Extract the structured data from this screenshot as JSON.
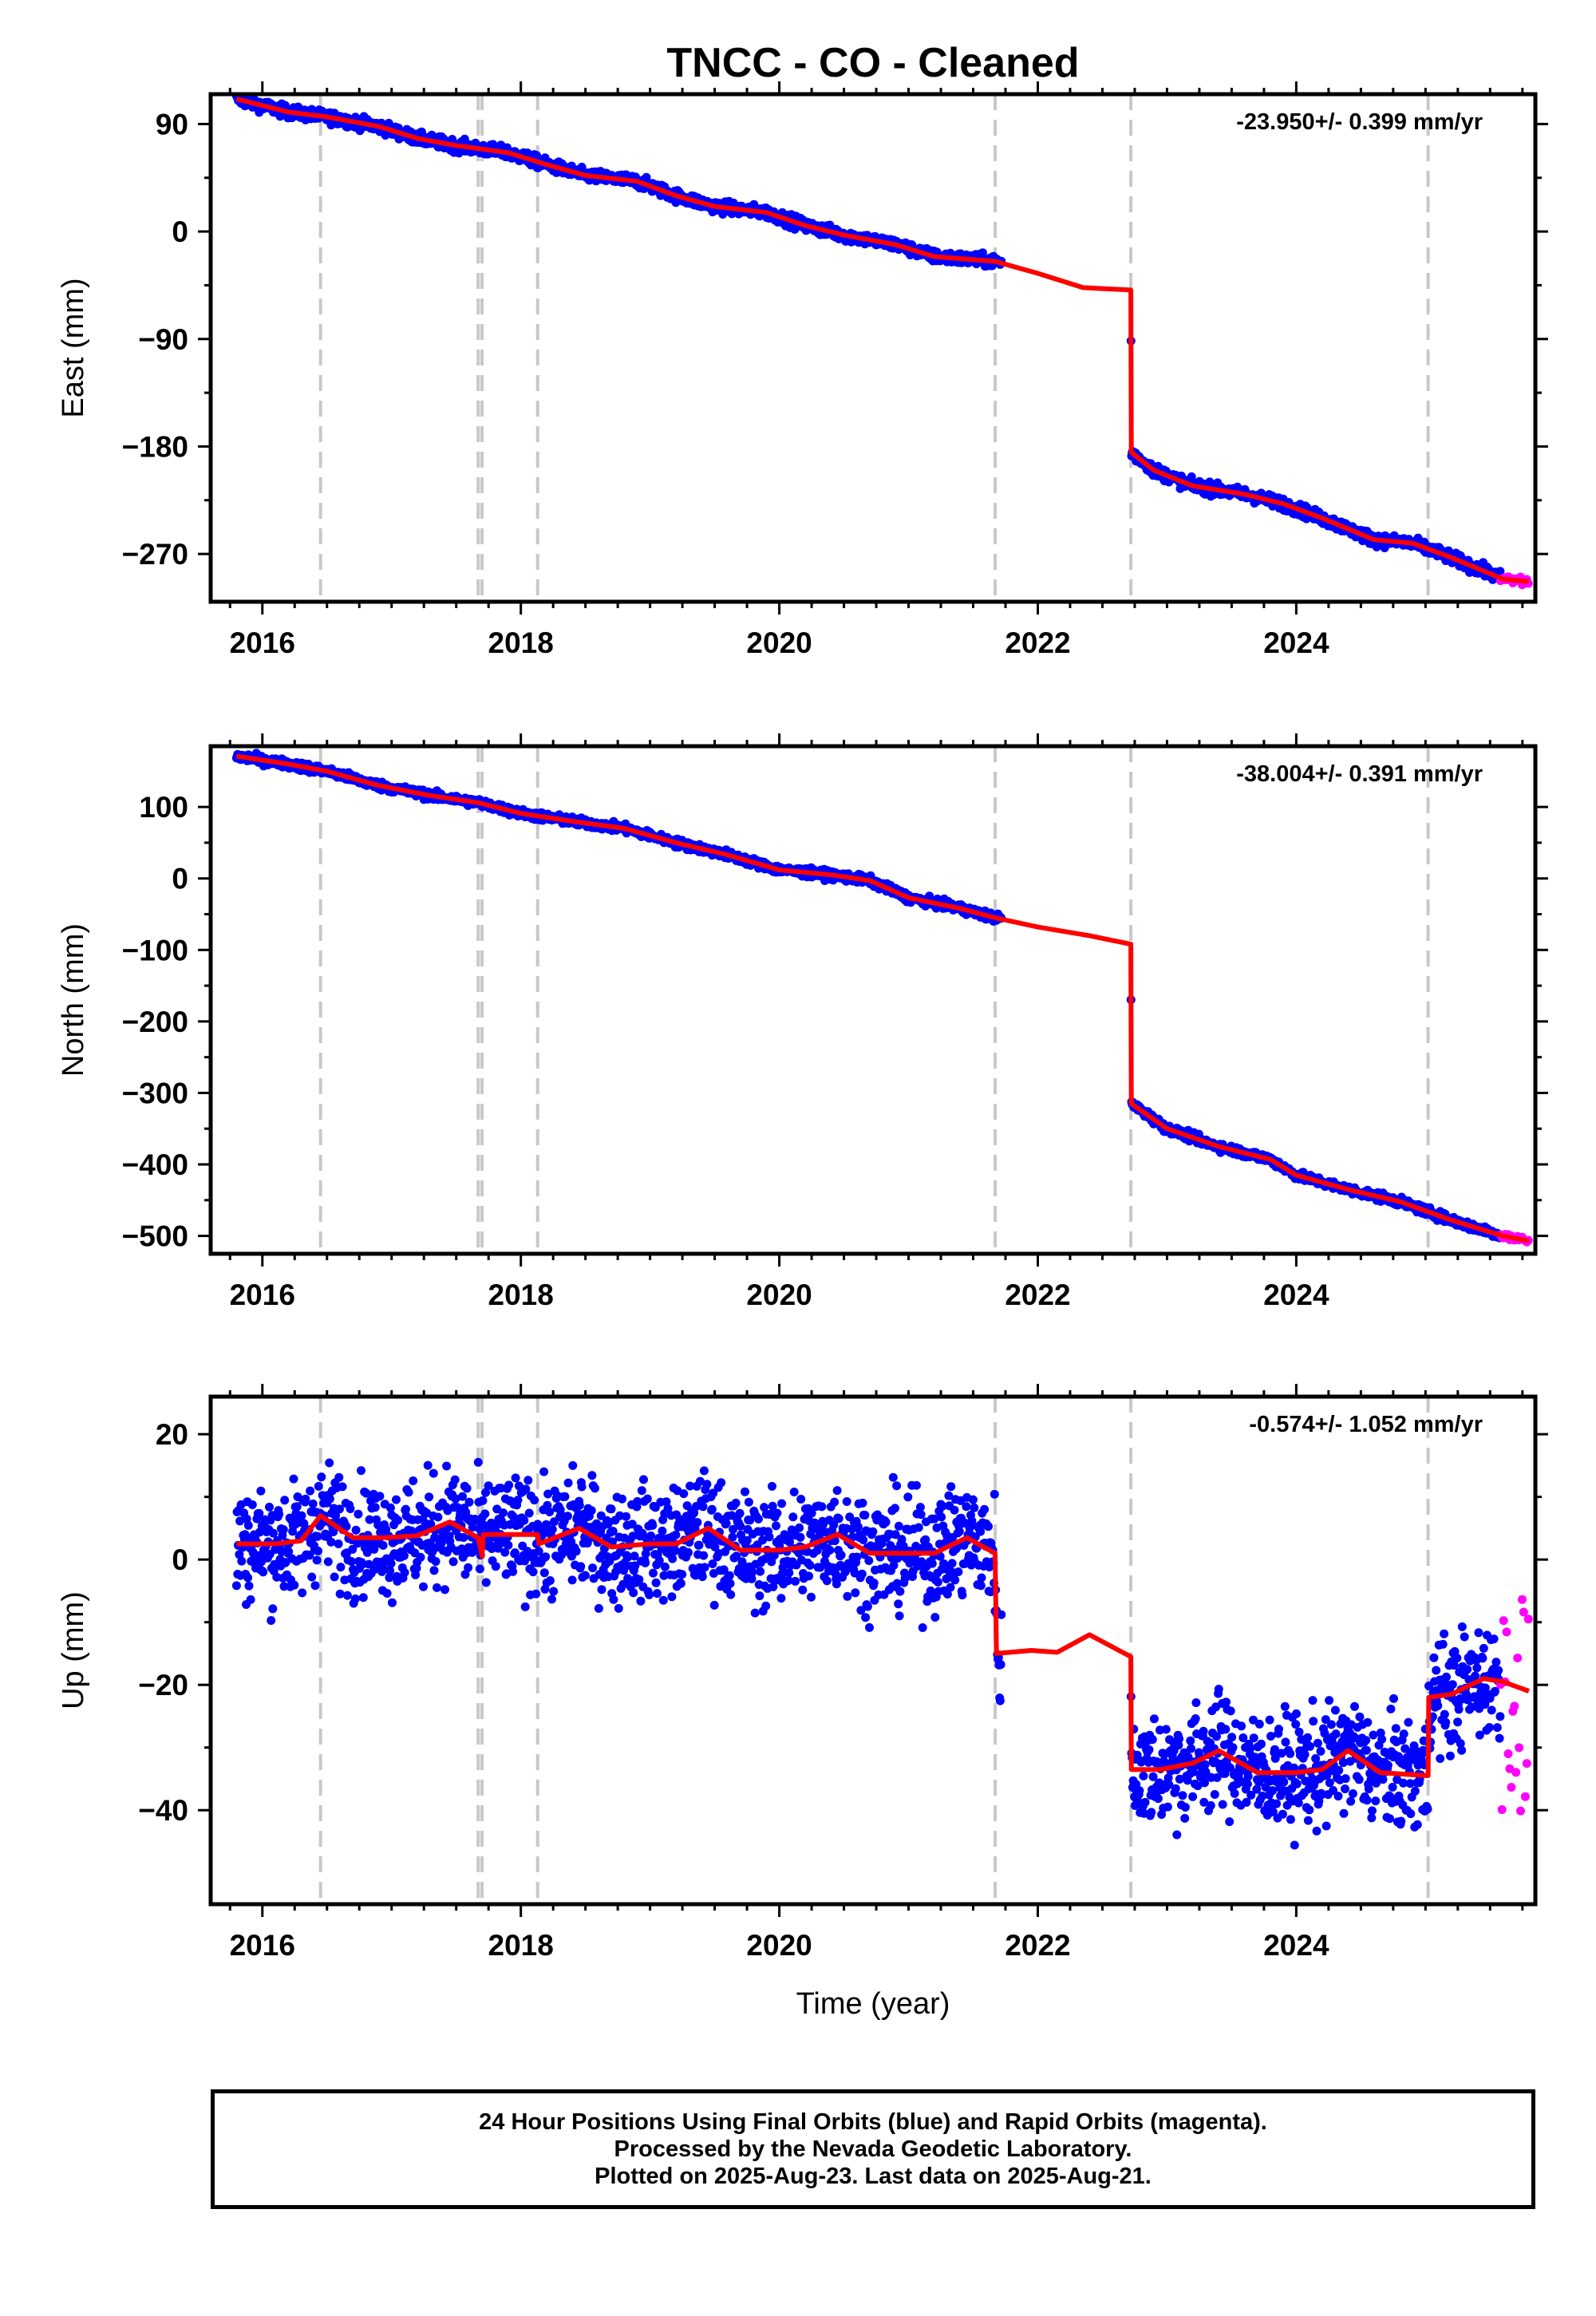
{
  "title": "TNCC  - CO - Cleaned",
  "xlabel": "Time (year)",
  "footer": {
    "line1": "24 Hour Positions Using Final Orbits (blue) and Rapid Orbits (magenta).",
    "line2": "Processed by the Nevada Geodetic Laboratory.",
    "line3": "Plotted on 2025-Aug-23. Last data on 2025-Aug-21."
  },
  "colors": {
    "final": "#0000ff",
    "rapid": "#ff00ff",
    "model": "#ff0000",
    "event_lines": "#c8c8c8",
    "frame": "#000000"
  },
  "chart_data": [
    {
      "type": "scatter",
      "component": "east",
      "ylabel": "East (mm)",
      "rate_label": "-23.950+/- 0.399 mm/yr",
      "xlim": [
        2015.6,
        2025.85
      ],
      "ylim": [
        -310,
        115
      ],
      "xticks": [
        2016,
        2018,
        2020,
        2022,
        2024
      ],
      "yticks": [
        90,
        0,
        -90,
        -180,
        -270
      ],
      "event_lines": [
        2016.45,
        2017.67,
        2017.7,
        2018.13,
        2021.67,
        2022.72,
        2025.02
      ],
      "model_knots": [
        [
          2015.8,
          111
        ],
        [
          2016.2,
          100
        ],
        [
          2016.5,
          96
        ],
        [
          2016.9,
          88
        ],
        [
          2017.2,
          78
        ],
        [
          2017.5,
          72
        ],
        [
          2017.9,
          66
        ],
        [
          2018.2,
          56
        ],
        [
          2018.5,
          47
        ],
        [
          2018.9,
          42
        ],
        [
          2019.2,
          30
        ],
        [
          2019.5,
          21
        ],
        [
          2019.9,
          16
        ],
        [
          2020.2,
          5
        ],
        [
          2020.5,
          -3
        ],
        [
          2020.9,
          -11
        ],
        [
          2021.2,
          -21
        ],
        [
          2021.67,
          -25
        ],
        [
          2022.0,
          -35
        ],
        [
          2022.35,
          -47
        ],
        [
          2022.72,
          -49
        ],
        [
          2022.724,
          -185
        ],
        [
          2022.9,
          -200
        ],
        [
          2023.2,
          -213
        ],
        [
          2023.6,
          -220
        ],
        [
          2023.9,
          -228
        ],
        [
          2024.2,
          -240
        ],
        [
          2024.6,
          -258
        ],
        [
          2024.9,
          -261
        ],
        [
          2025.2,
          -273
        ],
        [
          2025.6,
          -291
        ],
        [
          2025.8,
          -293
        ]
      ],
      "final_range": [
        2015.8,
        2025.58
      ],
      "gaps": [
        [
          2021.72,
          2022.72
        ]
      ],
      "rapid_range": [
        2025.58,
        2025.8
      ],
      "noise": 2.5
    },
    {
      "type": "scatter",
      "component": "north",
      "ylabel": "North (mm)",
      "rate_label": "-38.004+/- 0.391 mm/yr",
      "xlim": [
        2015.6,
        2025.85
      ],
      "ylim": [
        -525,
        185
      ],
      "xticks": [
        2016,
        2018,
        2020,
        2022,
        2024
      ],
      "yticks": [
        100,
        0,
        -100,
        -200,
        -300,
        -400,
        -500
      ],
      "event_lines": [
        2016.45,
        2017.67,
        2017.7,
        2018.13,
        2021.67,
        2022.72,
        2025.02
      ],
      "model_knots": [
        [
          2015.8,
          171
        ],
        [
          2016.2,
          160
        ],
        [
          2016.5,
          150
        ],
        [
          2016.9,
          130
        ],
        [
          2017.3,
          116
        ],
        [
          2017.67,
          106
        ],
        [
          2018.0,
          91
        ],
        [
          2018.4,
          80
        ],
        [
          2018.8,
          70
        ],
        [
          2019.2,
          50
        ],
        [
          2019.6,
          33
        ],
        [
          2020.0,
          12
        ],
        [
          2020.4,
          5
        ],
        [
          2020.7,
          -3
        ],
        [
          2021.0,
          -27
        ],
        [
          2021.4,
          -42
        ],
        [
          2021.67,
          -55
        ],
        [
          2022.0,
          -68
        ],
        [
          2022.4,
          -80
        ],
        [
          2022.72,
          -92
        ],
        [
          2022.724,
          -315
        ],
        [
          2023.0,
          -350
        ],
        [
          2023.4,
          -375
        ],
        [
          2023.8,
          -393
        ],
        [
          2024.0,
          -415
        ],
        [
          2024.4,
          -435
        ],
        [
          2024.8,
          -452
        ],
        [
          2025.2,
          -478
        ],
        [
          2025.6,
          -500
        ],
        [
          2025.8,
          -507
        ]
      ],
      "final_range": [
        2015.8,
        2025.58
      ],
      "gaps": [
        [
          2021.72,
          2022.72
        ]
      ],
      "rapid_range": [
        2025.58,
        2025.8
      ],
      "noise": 3
    },
    {
      "type": "scatter",
      "component": "up",
      "ylabel": "Up (mm)",
      "rate_label": "-0.574+/- 1.052 mm/yr",
      "xlim": [
        2015.6,
        2025.85
      ],
      "ylim": [
        -55,
        26
      ],
      "xticks": [
        2016,
        2018,
        2020,
        2022,
        2024
      ],
      "yticks": [
        20,
        0,
        -20,
        -40
      ],
      "event_lines": [
        2016.45,
        2017.67,
        2017.7,
        2018.13,
        2021.67,
        2022.72,
        2025.02
      ],
      "model_knots": [
        [
          2015.8,
          2.5
        ],
        [
          2016.1,
          2.5
        ],
        [
          2016.3,
          3
        ],
        [
          2016.45,
          7
        ],
        [
          2016.7,
          3.5
        ],
        [
          2016.95,
          3.5
        ],
        [
          2017.2,
          3.8
        ],
        [
          2017.45,
          6
        ],
        [
          2017.67,
          3.5
        ],
        [
          2017.7,
          0.5
        ],
        [
          2017.71,
          4
        ],
        [
          2018.13,
          4
        ],
        [
          2018.14,
          2.5
        ],
        [
          2018.45,
          5
        ],
        [
          2018.7,
          2
        ],
        [
          2019.0,
          2.5
        ],
        [
          2019.2,
          2.5
        ],
        [
          2019.45,
          5
        ],
        [
          2019.7,
          1.5
        ],
        [
          2020.0,
          1.5
        ],
        [
          2020.2,
          2
        ],
        [
          2020.45,
          4
        ],
        [
          2020.7,
          1
        ],
        [
          2021.0,
          1
        ],
        [
          2021.2,
          1
        ],
        [
          2021.45,
          3.5
        ],
        [
          2021.67,
          1
        ],
        [
          2021.68,
          -15
        ],
        [
          2021.95,
          -14.5
        ],
        [
          2022.15,
          -14.8
        ],
        [
          2022.4,
          -12
        ],
        [
          2022.72,
          -15.5
        ],
        [
          2022.724,
          -33.5
        ],
        [
          2022.95,
          -33.5
        ],
        [
          2023.2,
          -32.5
        ],
        [
          2023.4,
          -30.5
        ],
        [
          2023.7,
          -34
        ],
        [
          2024.0,
          -34
        ],
        [
          2024.2,
          -33.5
        ],
        [
          2024.4,
          -30.5
        ],
        [
          2024.65,
          -34
        ],
        [
          2025.02,
          -34.5
        ],
        [
          2025.025,
          -22
        ],
        [
          2025.2,
          -21.5
        ],
        [
          2025.45,
          -19
        ],
        [
          2025.6,
          -19.5
        ],
        [
          2025.8,
          -21
        ]
      ],
      "final_range": [
        2015.8,
        2025.58
      ],
      "gaps": [
        [
          2021.72,
          2022.72
        ]
      ],
      "rapid_range": [
        2025.58,
        2025.8
      ],
      "noise": 4.5
    }
  ]
}
